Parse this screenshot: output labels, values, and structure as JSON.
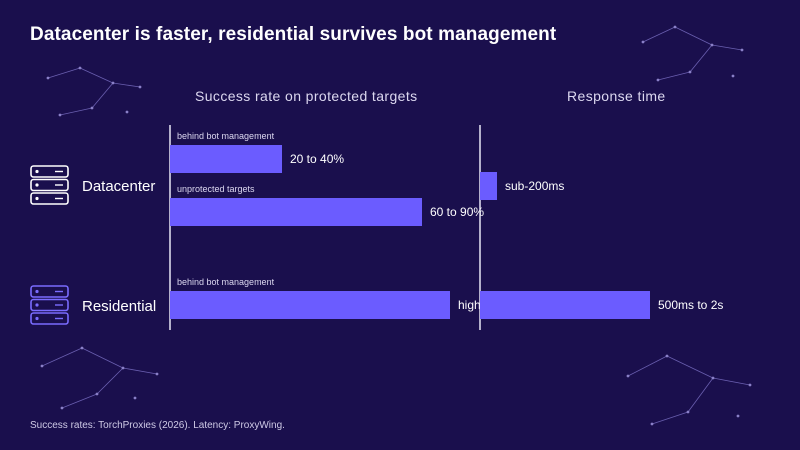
{
  "title": "Datacenter is faster, residential survives bot management",
  "source": "Success rates: TorchProxies (2026). Latency: ProxyWing.",
  "colors": {
    "background": "#1a0f4d",
    "bar": "#6b5cff",
    "axis": "#e8e6f5",
    "constellation": "#6a5fb0",
    "datacenter_icon": "#ffffff",
    "residential_icon": "#7a6cff"
  },
  "rows": [
    {
      "label": "Datacenter",
      "icon": "server-rack-icon"
    },
    {
      "label": "Residential",
      "icon": "server-rack-icon"
    }
  ],
  "chart_data": [
    {
      "type": "bar",
      "orientation": "horizontal",
      "title": "Success rate on protected targets",
      "unit": "%",
      "xlim": [
        0,
        100
      ],
      "bars": [
        {
          "row": "Datacenter",
          "caption": "behind bot management",
          "label": "20 to 40%",
          "range": [
            20,
            40
          ]
        },
        {
          "row": "Datacenter",
          "caption": "unprotected targets",
          "label": "60 to 90%",
          "range": [
            60,
            90
          ]
        },
        {
          "row": "Residential",
          "caption": "behind bot management",
          "label": "high",
          "range": [
            90,
            100
          ]
        }
      ]
    },
    {
      "type": "bar",
      "orientation": "horizontal",
      "title": "Response time",
      "unit": "ms",
      "xlim": [
        0,
        2400
      ],
      "bars": [
        {
          "row": "Datacenter",
          "caption": "",
          "label": "sub-200ms",
          "range": [
            0,
            200
          ]
        },
        {
          "row": "Residential",
          "caption": "",
          "label": "500ms to 2s",
          "range": [
            500,
            2000
          ]
        }
      ]
    }
  ]
}
